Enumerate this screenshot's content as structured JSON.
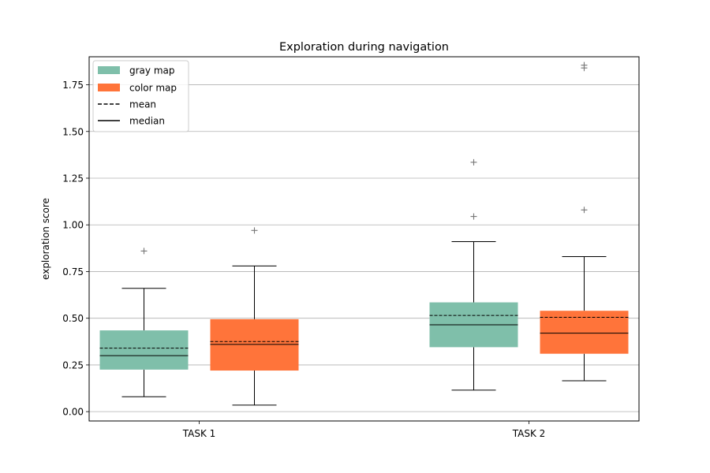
{
  "chart_data": {
    "type": "boxplot",
    "title": "Exploration during navigation",
    "xlabel": "",
    "ylabel": "exploration score",
    "categories": [
      "TASK 1",
      "TASK 2"
    ],
    "ylim": [
      -0.05,
      1.9
    ],
    "yticks": [
      "0.00",
      "0.25",
      "0.50",
      "0.75",
      "1.00",
      "1.25",
      "1.50",
      "1.75"
    ],
    "grid": "horizontal",
    "legend_position": "top-left",
    "legend": [
      "gray map",
      "color map",
      "mean",
      "median"
    ],
    "colors": {
      "gray map": "#7fbfaa",
      "color map": "#ff743a"
    },
    "series": [
      {
        "name": "gray map",
        "boxes": [
          {
            "category": "TASK 1",
            "whisker_low": 0.08,
            "q1": 0.225,
            "median": 0.3,
            "mean": 0.34,
            "q3": 0.435,
            "whisker_high": 0.66,
            "outliers": [
              0.86
            ]
          },
          {
            "category": "TASK 2",
            "whisker_low": 0.115,
            "q1": 0.345,
            "median": 0.465,
            "mean": 0.515,
            "q3": 0.585,
            "whisker_high": 0.91,
            "outliers": [
              1.045,
              1.335
            ]
          }
        ]
      },
      {
        "name": "color map",
        "boxes": [
          {
            "category": "TASK 1",
            "whisker_low": 0.035,
            "q1": 0.22,
            "median": 0.36,
            "mean": 0.375,
            "q3": 0.495,
            "whisker_high": 0.78,
            "outliers": [
              0.97
            ]
          },
          {
            "category": "TASK 2",
            "whisker_low": 0.165,
            "q1": 0.31,
            "median": 0.42,
            "mean": 0.505,
            "q3": 0.54,
            "whisker_high": 0.83,
            "outliers": [
              1.08,
              1.84,
              1.855
            ]
          }
        ]
      }
    ]
  }
}
